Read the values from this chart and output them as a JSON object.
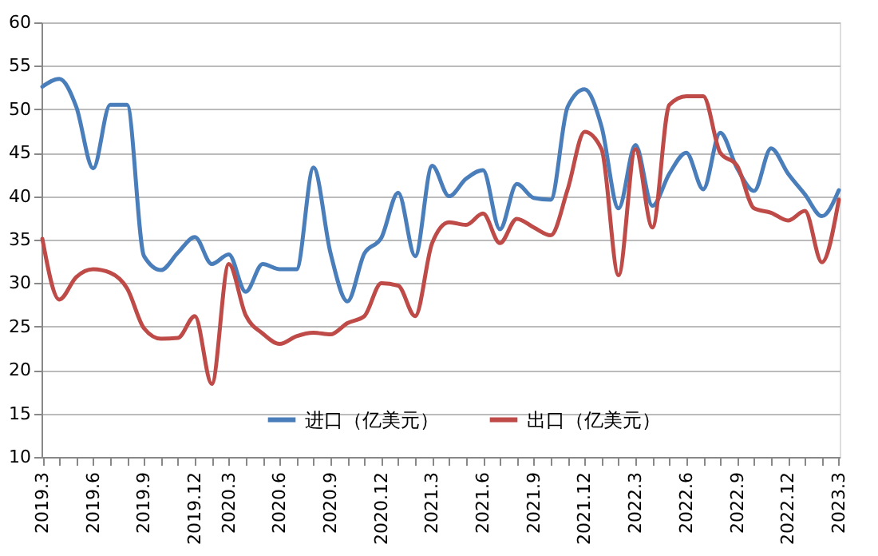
{
  "chart_data": {
    "type": "line",
    "categories": [
      "2019.3",
      null,
      null,
      "2019.6",
      null,
      null,
      "2019.9",
      null,
      null,
      "2019.12",
      null,
      "2020.3",
      null,
      null,
      "2020.6",
      null,
      null,
      "2020.9",
      null,
      null,
      "2020.12",
      null,
      null,
      "2021.3",
      null,
      null,
      "2021.6",
      null,
      null,
      "2021.9",
      null,
      null,
      "2021.12",
      null,
      null,
      "2022.3",
      null,
      null,
      "2022.6",
      null,
      null,
      "2022.9",
      null,
      null,
      "2022.12",
      null,
      null,
      "2023.3"
    ],
    "series": [
      {
        "name": "进口（亿美元）",
        "color": "#4a7ebb",
        "values": [
          52.6,
          53.5,
          50.3,
          43.2,
          50.5,
          50.5,
          33.1,
          31.5,
          33.5,
          35.3,
          32.2,
          33.3,
          29.0,
          32.2,
          31.6,
          31.6,
          43.3,
          33.5,
          27.9,
          33.4,
          35.2,
          40.4,
          33.1,
          43.5,
          40.0,
          42.0,
          43.0,
          36.2,
          41.4,
          39.8,
          39.6,
          50.3,
          52.3,
          48.0,
          38.6,
          45.9,
          38.9,
          42.6,
          45.0,
          40.8,
          47.3,
          43.2,
          40.6,
          45.5,
          42.6,
          40.2,
          37.7,
          40.7
        ]
      },
      {
        "name": "出口（亿美元）",
        "color": "#be4b48",
        "values": [
          35.1,
          28.1,
          30.7,
          31.6,
          31.2,
          29.4,
          24.8,
          23.6,
          23.7,
          26.2,
          18.4,
          32.2,
          26.3,
          24.2,
          23.0,
          23.9,
          24.3,
          24.1,
          25.4,
          26.2,
          30.0,
          29.7,
          26.2,
          34.6,
          37.0,
          36.7,
          38.0,
          34.6,
          37.4,
          36.4,
          35.5,
          40.8,
          47.4,
          45.4,
          30.9,
          45.4,
          36.4,
          50.5,
          51.5,
          51.5,
          45.0,
          43.5,
          38.6,
          38.1,
          37.2,
          38.3,
          32.4,
          39.6
        ]
      }
    ],
    "ylim": [
      10,
      60
    ],
    "yticks": [
      10,
      15,
      20,
      25,
      30,
      35,
      40,
      45,
      50,
      55,
      60
    ],
    "grid": "y",
    "legend": "bottom",
    "line_style": "solid",
    "marker": "none"
  }
}
